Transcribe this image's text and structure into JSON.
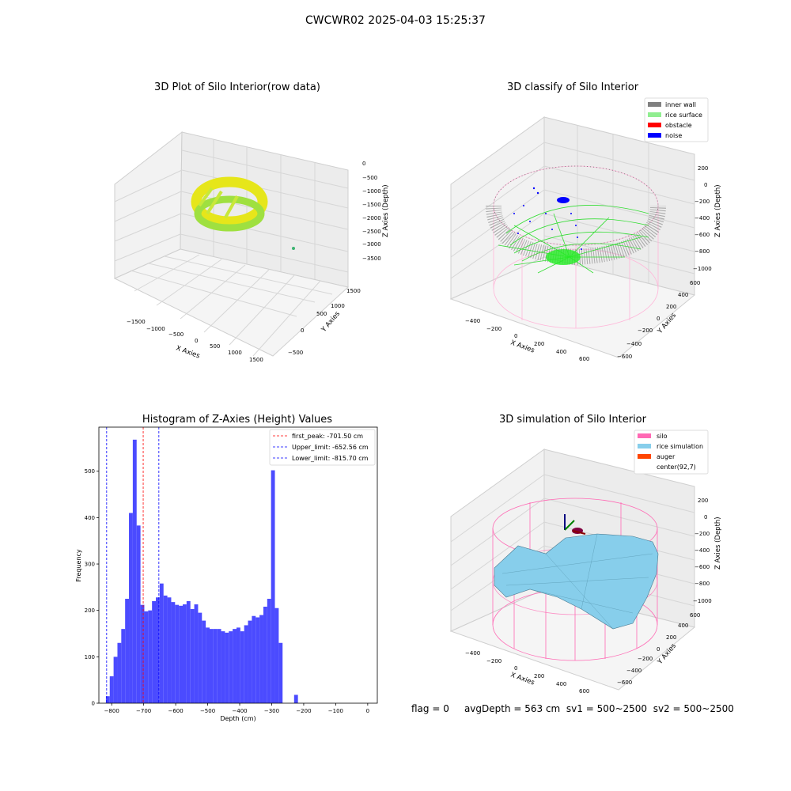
{
  "suptitle": "CWCWR02 2025-04-03 15:25:37",
  "colors": {
    "bar": "#4b4bff",
    "first_peak": "#ff0000",
    "limits": "#0000ff",
    "inner_wall": "#808080",
    "rice_surface": "#90ee90",
    "obstacle": "#ff0000",
    "noise": "#0000ff",
    "silo": "#ff69b4",
    "rice_simulation": "#87ceeb",
    "auger": "#ff4500"
  },
  "panels": {
    "raw": {
      "title": "3D Plot of Silo Interior(row data)",
      "xlabel": "X Axies",
      "ylabel": "Y Axies",
      "zlabel": "Z Axies (Depth)",
      "xticks": [
        "−1500",
        "−1000",
        "−500",
        "0",
        "500",
        "1000",
        "1500"
      ],
      "yticks": [
        "−500",
        "0",
        "500",
        "1000",
        "1500"
      ],
      "zticks": [
        "0",
        "−500",
        "−1000",
        "−1500",
        "−2000",
        "−2500",
        "−3000",
        "−3500"
      ]
    },
    "classify": {
      "title": "3D classify of Silo Interior",
      "xlabel": "X Axies",
      "ylabel": "Y Axies",
      "zlabel": "Z Axies (Depth)",
      "xticks": [
        "−400",
        "−200",
        "0",
        "200",
        "400",
        "600"
      ],
      "yticks": [
        "−600",
        "−400",
        "−200",
        "0",
        "200",
        "400",
        "600"
      ],
      "zticks": [
        "200",
        "0",
        "−200",
        "−400",
        "−600",
        "−800",
        "−1000"
      ],
      "legend": [
        {
          "label": "inner wall",
          "color": "#808080"
        },
        {
          "label": "rice surface",
          "color": "#90ee90"
        },
        {
          "label": "obstacle",
          "color": "#ff0000"
        },
        {
          "label": "noise",
          "color": "#0000ff"
        }
      ]
    },
    "simulation": {
      "title": "3D simulation of Silo Interior",
      "xlabel": "X Axies",
      "ylabel": "Y Axies",
      "zlabel": "Z Axies (Depth)",
      "xticks": [
        "−400",
        "−200",
        "0",
        "200",
        "400",
        "600"
      ],
      "yticks": [
        "−600",
        "−400",
        "−200",
        "0",
        "200",
        "400",
        "600"
      ],
      "zticks": [
        "200",
        "0",
        "−200",
        "−400",
        "−600",
        "−800",
        "−1000"
      ],
      "legend": [
        {
          "label": "silo",
          "color": "#ff69b4"
        },
        {
          "label": "rice simulation",
          "color": "#87ceeb"
        },
        {
          "label": "auger",
          "color": "#ff4500"
        },
        {
          "label": "center(92,7)",
          "color": "none"
        }
      ]
    }
  },
  "chart_data": {
    "type": "bar",
    "title": "Histogram of Z-Axies (Height) Values",
    "xlabel": "Depth (cm)",
    "ylabel": "Frequency",
    "xlim": [
      -840,
      30
    ],
    "ylim": [
      0,
      595
    ],
    "xticks": [
      -800,
      -700,
      -600,
      -500,
      -400,
      -300,
      -200,
      -100,
      0
    ],
    "yticks": [
      0,
      100,
      200,
      300,
      400,
      500
    ],
    "bin_width": 12,
    "bin_start": -818,
    "values": [
      15,
      58,
      100,
      130,
      160,
      225,
      410,
      568,
      383,
      212,
      198,
      200,
      220,
      228,
      258,
      232,
      228,
      218,
      212,
      210,
      213,
      220,
      203,
      213,
      195,
      178,
      163,
      160,
      160,
      160,
      155,
      152,
      155,
      160,
      163,
      155,
      168,
      178,
      188,
      185,
      190,
      208,
      225,
      502,
      205,
      130,
      0,
      0,
      0,
      18
    ],
    "vlines": [
      {
        "label": "first_peak: -701.50 cm",
        "x": -701.5,
        "color": "#ff0000"
      },
      {
        "label": "Upper_limit: -652.56 cm",
        "x": -652.56,
        "color": "#0000ff"
      },
      {
        "label": "Lower_limit: -815.70 cm",
        "x": -815.7,
        "color": "#0000ff"
      }
    ],
    "legend_position": "top-right"
  },
  "status": {
    "flag": "flag = 0",
    "avg_depth": "avgDepth = 563 cm",
    "sv1": "sv1 = 500~2500",
    "sv2": "sv2 = 500~2500"
  }
}
